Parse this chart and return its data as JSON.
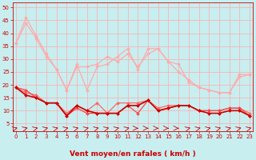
{
  "xlabel": "Vent moyen/en rafales ( km/h )",
  "x": [
    0,
    1,
    2,
    3,
    4,
    5,
    6,
    7,
    8,
    9,
    10,
    11,
    12,
    13,
    14,
    15,
    16,
    17,
    18,
    19,
    20,
    21,
    22,
    23
  ],
  "xlim": [
    -0.3,
    23.3
  ],
  "ylim": [
    2,
    52
  ],
  "yticks": [
    5,
    10,
    15,
    20,
    25,
    30,
    35,
    40,
    45,
    50
  ],
  "bg_color": "#c8eef0",
  "grid_color": "#ffaaaa",
  "series": [
    {
      "color": "#ffaaaa",
      "linewidth": 0.9,
      "markersize": 2.0,
      "y": [
        36,
        46,
        39,
        32,
        26,
        18,
        28,
        18,
        27,
        28,
        31,
        34,
        26,
        34,
        34,
        29,
        25,
        22,
        19,
        18,
        17,
        17,
        24,
        24
      ]
    },
    {
      "color": "#ffaaaa",
      "linewidth": 0.9,
      "markersize": 2.0,
      "y": [
        36,
        44,
        38,
        31,
        26,
        18,
        27,
        27,
        28,
        31,
        29,
        32,
        27,
        32,
        34,
        29,
        28,
        21,
        19,
        18,
        17,
        17,
        23,
        24
      ]
    },
    {
      "color": "#ff6666",
      "linewidth": 0.9,
      "markersize": 2.0,
      "y": [
        19,
        17,
        16,
        13,
        13,
        9,
        12,
        10,
        13,
        9,
        13,
        13,
        13,
        14,
        11,
        12,
        12,
        12,
        10,
        10,
        10,
        11,
        11,
        9
      ]
    },
    {
      "color": "#ff4444",
      "linewidth": 0.9,
      "markersize": 2.0,
      "y": [
        19,
        18,
        15,
        13,
        13,
        8,
        11,
        9,
        9,
        9,
        9,
        12,
        9,
        14,
        10,
        11,
        12,
        12,
        10,
        10,
        10,
        11,
        11,
        8
      ]
    },
    {
      "color": "#cc0000",
      "linewidth": 1.2,
      "markersize": 2.0,
      "y": [
        19,
        16,
        15,
        13,
        13,
        8,
        12,
        10,
        9,
        9,
        9,
        12,
        12,
        14,
        10,
        11,
        12,
        12,
        10,
        9,
        9,
        10,
        10,
        8
      ]
    }
  ],
  "arrow_directions": [
    45,
    45,
    45,
    45,
    45,
    45,
    45,
    45,
    45,
    45,
    45,
    45,
    0,
    0,
    0,
    0,
    0,
    45,
    45,
    45,
    45,
    45,
    45,
    45
  ]
}
